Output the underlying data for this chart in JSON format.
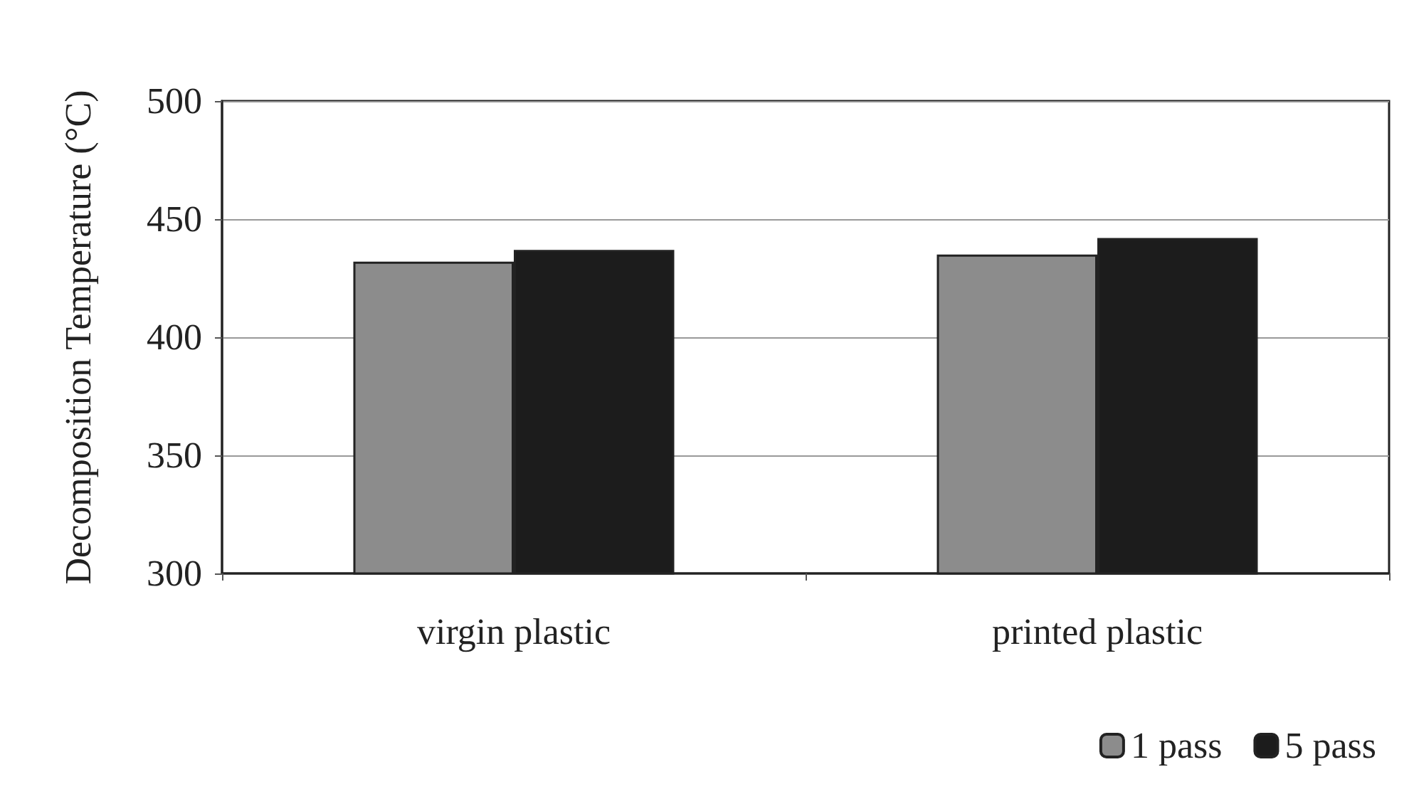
{
  "chart_data": {
    "type": "bar",
    "ylabel": "Decomposition Temperature (°C)",
    "categories": [
      "virgin plastic",
      "printed plastic"
    ],
    "series": [
      {
        "name": "1 pass",
        "color": "#8c8c8c",
        "values": [
          432,
          435
        ]
      },
      {
        "name": "5 pass",
        "color": "#1c1c1c",
        "values": [
          437,
          442
        ]
      }
    ],
    "ylim": [
      300,
      500
    ],
    "yticks": [
      300,
      350,
      400,
      450,
      500
    ],
    "grid": "y",
    "legend": "bottom right"
  }
}
